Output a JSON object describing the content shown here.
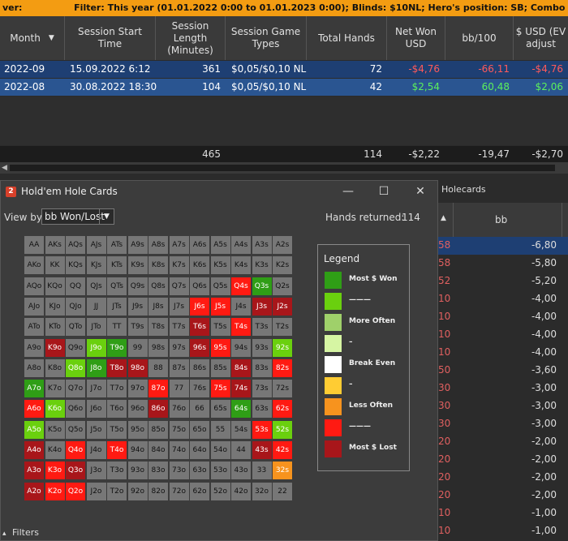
{
  "filter_bar": {
    "left": "ver:",
    "label": "Filter:",
    "text": "This year (01.01.2022 0:00 to 01.01.2023 0:00); Blinds: $10NL; Hero's position: SB; Combo actions: VPIP,not PFR; Pre"
  },
  "columns": [
    "Month",
    "Session Start Time",
    "Session Length (Minutes)",
    "Session Game Types",
    "Total Hands",
    "Net Won USD",
    "bb/100",
    "$ USD (EV adjust"
  ],
  "rows": [
    {
      "month": "2022-09",
      "start": "15.09.2022 6:12",
      "length": "361",
      "game": "$0,05/$0,10 NL",
      "hands": "72",
      "net": "-$4,76",
      "bb100": "-66,11",
      "ev": "-$4,76"
    },
    {
      "month": "2022-08",
      "start": "30.08.2022 18:30",
      "length": "104",
      "game": "$0,05/$0,10 NL",
      "hands": "42",
      "net": "$2,54",
      "bb100": "60,48",
      "ev": "$2,06"
    }
  ],
  "totals": {
    "length": "465",
    "hands": "114",
    "net": "-$2,22",
    "bb100": "-19,47",
    "ev": "-$2,70"
  },
  "bg_window": {
    "title": "Holecards",
    "col": "bb",
    "rows": [
      {
        "a": "58",
        "b": "-6,80"
      },
      {
        "a": "58",
        "b": "-5,80"
      },
      {
        "a": "52",
        "b": "-5,20"
      },
      {
        "a": "10",
        "b": "-4,00"
      },
      {
        "a": "10",
        "b": "-4,00"
      },
      {
        "a": "10",
        "b": "-4,00"
      },
      {
        "a": "10",
        "b": "-4,00"
      },
      {
        "a": "50",
        "b": "-3,60"
      },
      {
        "a": "30",
        "b": "-3,00"
      },
      {
        "a": "30",
        "b": "-3,00"
      },
      {
        "a": "30",
        "b": "-3,00"
      },
      {
        "a": "20",
        "b": "-2,00"
      },
      {
        "a": "20",
        "b": "-2,00"
      },
      {
        "a": "20",
        "b": "-2,00"
      },
      {
        "a": "20",
        "b": "-2,00"
      },
      {
        "a": "10",
        "b": "-1,00"
      },
      {
        "a": "10",
        "b": "-1,00"
      }
    ]
  },
  "dialog": {
    "icon": "2",
    "title": "Hold'em Hole Cards",
    "minimize": "—",
    "maximize": "☐",
    "close": "✕",
    "view_by_label": "View by:",
    "view_by_value": "bb Won/Lost",
    "hands_returned_label": "Hands returned:",
    "hands_returned_value": "114"
  },
  "grid": {
    "cells": [
      [
        "AA",
        "AKs",
        "AQs",
        "AJs",
        "ATs",
        "A9s",
        "A8s",
        "A7s",
        "A6s",
        "A5s",
        "A4s",
        "A3s",
        "A2s"
      ],
      [
        "AKo",
        "KK",
        "KQs",
        "KJs",
        "KTs",
        "K9s",
        "K8s",
        "K7s",
        "K6s",
        "K5s",
        "K4s",
        "K3s",
        "K2s"
      ],
      [
        "AQo",
        "KQo",
        "QQ",
        "QJs",
        "QTs",
        "Q9s",
        "Q8s",
        "Q7s",
        "Q6s",
        "Q5s",
        "Q4s",
        "Q3s",
        "Q2s"
      ],
      [
        "AJo",
        "KJo",
        "QJo",
        "JJ",
        "JTs",
        "J9s",
        "J8s",
        "J7s",
        "J6s",
        "J5s",
        "J4s",
        "J3s",
        "J2s"
      ],
      [
        "ATo",
        "KTo",
        "QTo",
        "JTo",
        "TT",
        "T9s",
        "T8s",
        "T7s",
        "T6s",
        "T5s",
        "T4s",
        "T3s",
        "T2s"
      ],
      [
        "A9o",
        "K9o",
        "Q9o",
        "J9o",
        "T9o",
        "99",
        "98s",
        "97s",
        "96s",
        "95s",
        "94s",
        "93s",
        "92s"
      ],
      [
        "A8o",
        "K8o",
        "Q8o",
        "J8o",
        "T8o",
        "98o",
        "88",
        "87s",
        "86s",
        "85s",
        "84s",
        "83s",
        "82s"
      ],
      [
        "A7o",
        "K7o",
        "Q7o",
        "J7o",
        "T7o",
        "97o",
        "87o",
        "77",
        "76s",
        "75s",
        "74s",
        "73s",
        "72s"
      ],
      [
        "A6o",
        "K6o",
        "Q6o",
        "J6o",
        "T6o",
        "96o",
        "86o",
        "76o",
        "66",
        "65s",
        "64s",
        "63s",
        "62s"
      ],
      [
        "A5o",
        "K5o",
        "Q5o",
        "J5o",
        "T5o",
        "95o",
        "85o",
        "75o",
        "65o",
        "55",
        "54s",
        "53s",
        "52s"
      ],
      [
        "A4o",
        "K4o",
        "Q4o",
        "J4o",
        "T4o",
        "94o",
        "84o",
        "74o",
        "64o",
        "54o",
        "44",
        "43s",
        "42s"
      ],
      [
        "A3o",
        "K3o",
        "Q3o",
        "J3o",
        "T3o",
        "93o",
        "83o",
        "73o",
        "63o",
        "53o",
        "43o",
        "33",
        "32s"
      ],
      [
        "A2o",
        "K2o",
        "Q2o",
        "J2o",
        "T2o",
        "92o",
        "82o",
        "72o",
        "62o",
        "52o",
        "42o",
        "32o",
        "22"
      ]
    ],
    "colors": [
      [
        "n",
        "n",
        "n",
        "n",
        "n",
        "n",
        "n",
        "n",
        "n",
        "n",
        "n",
        "n",
        "n"
      ],
      [
        "n",
        "n",
        "n",
        "n",
        "n",
        "n",
        "n",
        "n",
        "n",
        "n",
        "n",
        "n",
        "n"
      ],
      [
        "n",
        "n",
        "n",
        "n",
        "n",
        "n",
        "n",
        "n",
        "n",
        "n",
        "r",
        "dg",
        "n"
      ],
      [
        "n",
        "n",
        "n",
        "n",
        "n",
        "n",
        "n",
        "n",
        "r",
        "r",
        "n",
        "dr",
        "dr"
      ],
      [
        "n",
        "n",
        "n",
        "n",
        "n",
        "n",
        "n",
        "n",
        "dr",
        "n",
        "r",
        "n",
        "n"
      ],
      [
        "n",
        "dr",
        "n",
        "lg",
        "dg",
        "n",
        "n",
        "n",
        "dr",
        "r",
        "n",
        "n",
        "lg"
      ],
      [
        "n",
        "n",
        "lg",
        "dg",
        "dr",
        "dr",
        "n",
        "n",
        "n",
        "n",
        "dr",
        "n",
        "r"
      ],
      [
        "dg",
        "n",
        "n",
        "n",
        "n",
        "n",
        "r",
        "n",
        "n",
        "r",
        "dr",
        "n",
        "n"
      ],
      [
        "r",
        "lg",
        "n",
        "n",
        "n",
        "n",
        "dr",
        "n",
        "n",
        "n",
        "dg",
        "n",
        "r"
      ],
      [
        "lg",
        "n",
        "n",
        "n",
        "n",
        "n",
        "n",
        "n",
        "n",
        "n",
        "n",
        "r",
        "lg"
      ],
      [
        "dr",
        "n",
        "r",
        "n",
        "r",
        "n",
        "n",
        "n",
        "n",
        "n",
        "n",
        "dr",
        "r"
      ],
      [
        "dr",
        "r",
        "dr",
        "n",
        "n",
        "n",
        "n",
        "n",
        "n",
        "n",
        "n",
        "n",
        "o"
      ],
      [
        "dr",
        "r",
        "r",
        "n",
        "n",
        "n",
        "n",
        "n",
        "n",
        "n",
        "n",
        "n",
        "n"
      ]
    ]
  },
  "legend": {
    "title": "Legend",
    "items": [
      {
        "color": "#2f9e16",
        "label": "Most $ Won"
      },
      {
        "color": "#6ad00e",
        "label": "———"
      },
      {
        "color": "#9fd06a",
        "label": "More Often"
      },
      {
        "color": "#d6f5a3",
        "label": "–"
      },
      {
        "color": "#ffffff",
        "label": "Break Even"
      },
      {
        "color": "#ffcc33",
        "label": "–"
      },
      {
        "color": "#f7931e",
        "label": "Less Often"
      },
      {
        "color": "#ff1a12",
        "label": "———"
      },
      {
        "color": "#a8161a",
        "label": "Most $ Lost"
      }
    ]
  },
  "footer": {
    "filters_label": "Filters",
    "filters_icon": "▴"
  }
}
